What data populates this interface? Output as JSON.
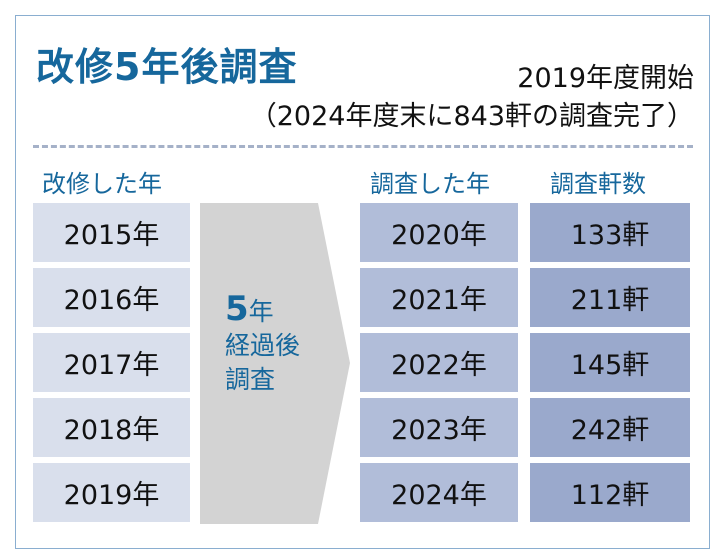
{
  "title": "改修5年後調査",
  "subtitle": "2019年度開始",
  "note": "（2024年度末に843軒の調査完了）",
  "headers": {
    "renovated": "改修した年",
    "surveyed": "調査した年",
    "count": "調査軒数"
  },
  "arrow": {
    "num": "5",
    "unit": "年",
    "line2": "経過後",
    "line3": "調査"
  },
  "rows": [
    {
      "renovated": "2015年",
      "surveyed": "2020年",
      "count": "133軒"
    },
    {
      "renovated": "2016年",
      "surveyed": "2021年",
      "count": "211軒"
    },
    {
      "renovated": "2017年",
      "surveyed": "2022年",
      "count": "145軒"
    },
    {
      "renovated": "2018年",
      "surveyed": "2023年",
      "count": "242軒"
    },
    {
      "renovated": "2019年",
      "surveyed": "2024年",
      "count": "112軒"
    }
  ]
}
